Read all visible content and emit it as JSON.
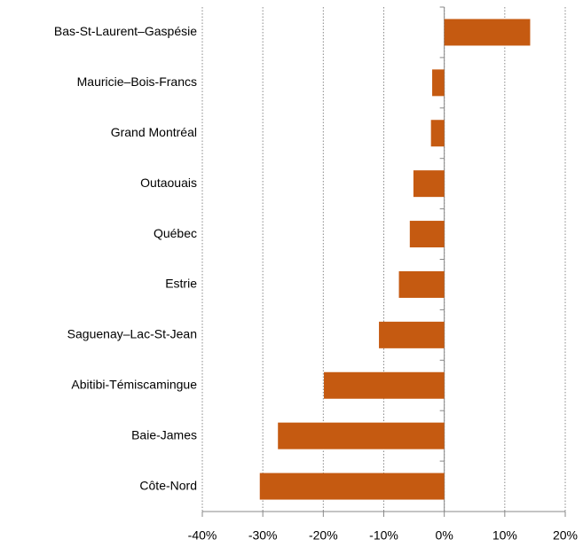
{
  "chart_data": {
    "type": "bar",
    "orientation": "horizontal",
    "categories": [
      "Bas-St-Laurent–Gaspésie",
      "Mauricie–Bois-Francs",
      "Grand Montréal",
      "Outaouais",
      "Québec",
      "Estrie",
      "Saguenay–Lac-St-Jean",
      "Abitibi-Témiscamingue",
      "Baie-James",
      "Côte-Nord"
    ],
    "values": [
      14.2,
      -2.0,
      -2.2,
      -5.1,
      -5.7,
      -7.5,
      -10.8,
      -19.9,
      -27.5,
      -30.5
    ],
    "color": "#c55a11",
    "xlim": [
      -40,
      20
    ],
    "xticks": [
      {
        "value": -40,
        "label": "-40%"
      },
      {
        "value": -30,
        "label": "-30%"
      },
      {
        "value": -20,
        "label": "-20%"
      },
      {
        "value": -10,
        "label": "-10%"
      },
      {
        "value": 0,
        "label": "0%"
      },
      {
        "value": 10,
        "label": "10%"
      },
      {
        "value": 20,
        "label": "20%"
      }
    ],
    "grid": true
  }
}
